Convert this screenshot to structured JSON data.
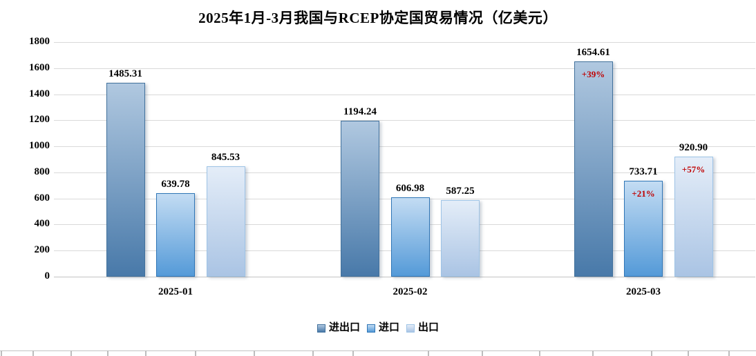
{
  "title": "2025年1月-3月我国与RCEP协定国贸易情况（亿美元）",
  "chart_data": {
    "type": "bar",
    "title": "2025年1月-3月我国与RCEP协定国贸易情况（亿美元）",
    "unit": "亿美元",
    "categories": [
      "2025-01",
      "2025-02",
      "2025-03"
    ],
    "series": [
      {
        "name": "进出口",
        "values": [
          1485.31,
          1194.24,
          1654.61
        ],
        "value_labels": [
          "1485.31",
          "1194.24",
          "1654.61"
        ],
        "growth_labels": [
          "",
          "",
          "+39%"
        ],
        "fill_top": "#b0c8e0",
        "fill_bottom": "#4879a9",
        "border_color": "#41719c"
      },
      {
        "name": "进口",
        "values": [
          639.78,
          606.98,
          733.71
        ],
        "value_labels": [
          "639.78",
          "606.98",
          "733.71"
        ],
        "growth_labels": [
          "",
          "",
          "+21%"
        ],
        "fill_top": "#c3dcf3",
        "fill_bottom": "#549ad8",
        "border_color": "#2e75b6"
      },
      {
        "name": "出口",
        "values": [
          845.53,
          587.25,
          920.9
        ],
        "value_labels": [
          "845.53",
          "587.25",
          "920.90"
        ],
        "growth_labels": [
          "",
          "",
          "+57%"
        ],
        "fill_top": "#e4edf8",
        "fill_bottom": "#aac4e4",
        "border_color": "#9dc3e6"
      }
    ],
    "ylim": [
      0,
      1800
    ],
    "ytick_interval": 200,
    "ytick_labels": [
      "0",
      "200",
      "400",
      "600",
      "800",
      "1000",
      "1200",
      "1400",
      "1600",
      "1800"
    ],
    "grid": true,
    "legend_position": "bottom",
    "growth_label_color": "#c00000"
  }
}
